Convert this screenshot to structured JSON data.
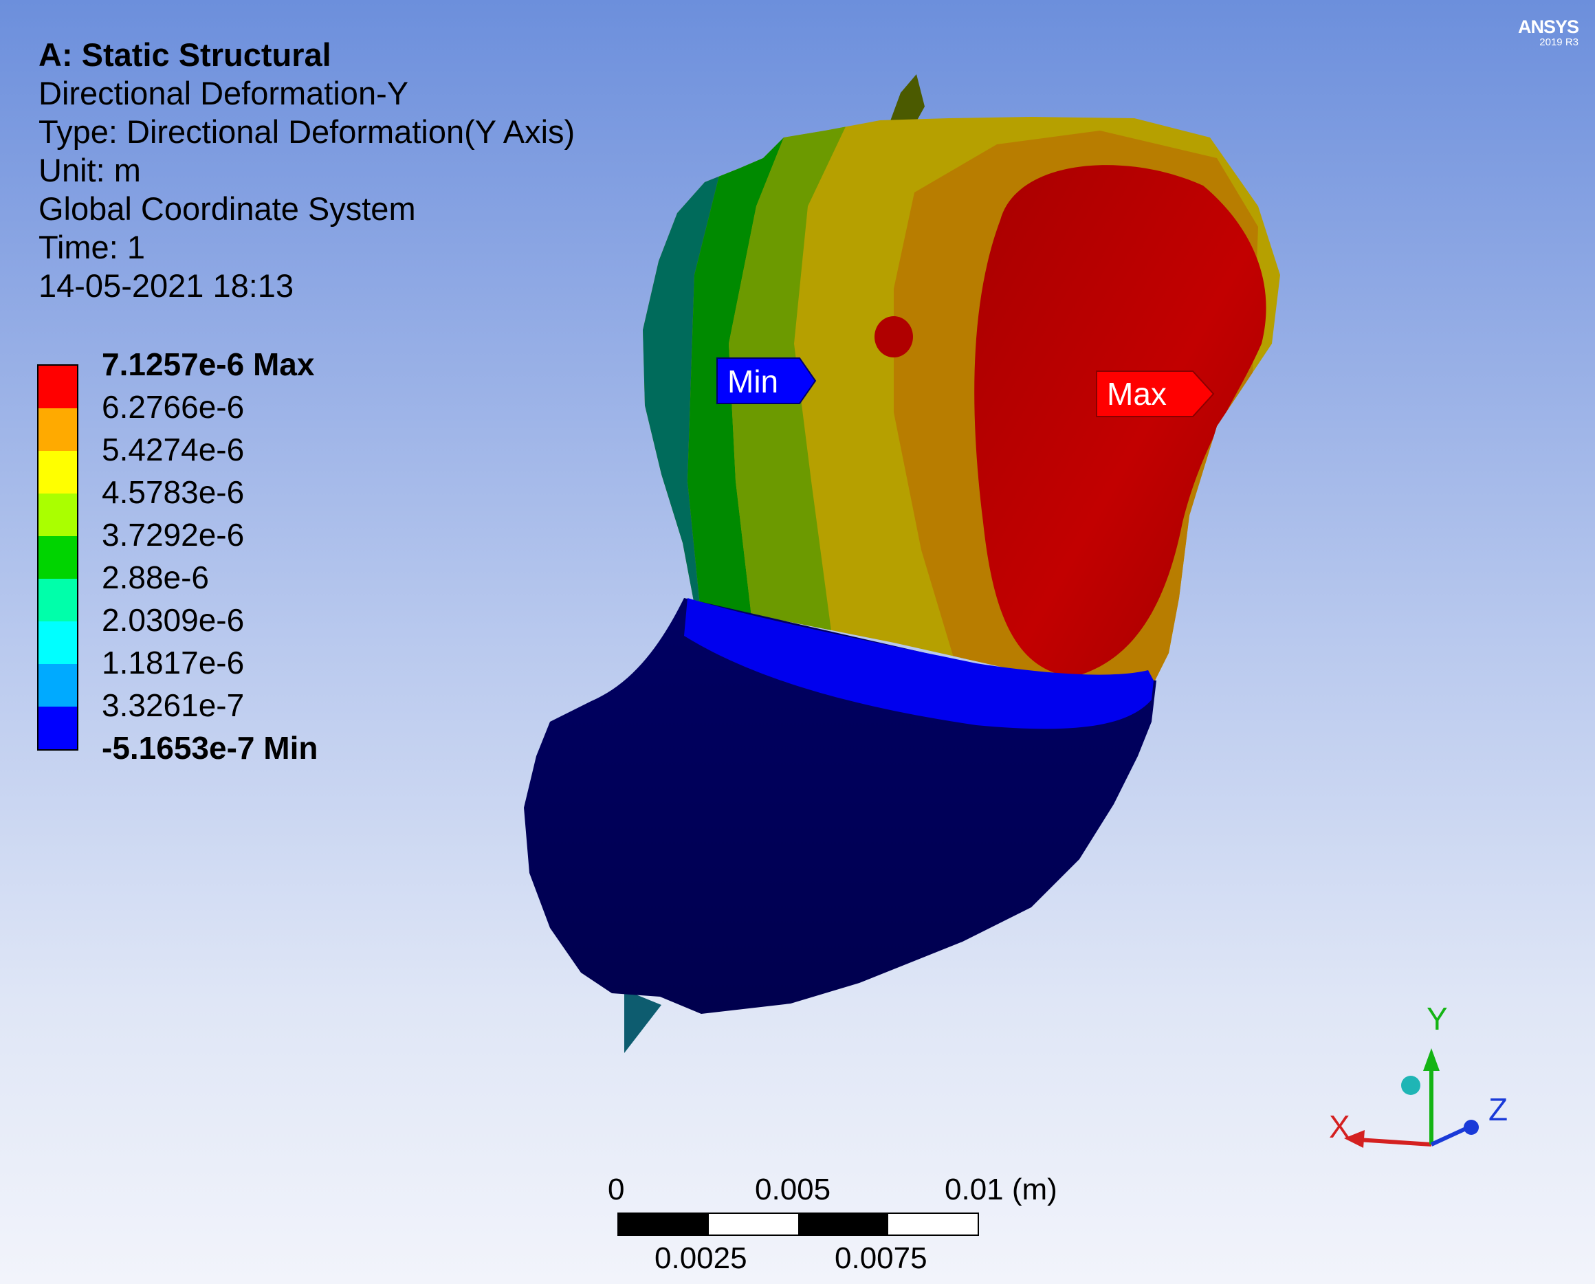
{
  "header": {
    "title": "A: Static Structural",
    "result_name": "Directional Deformation-Y",
    "type": "Type: Directional Deformation(Y Axis)",
    "unit": "Unit: m",
    "coordinate_system": "Global Coordinate System",
    "time": "Time: 1",
    "timestamp": "14-05-2021 18:13"
  },
  "legend": {
    "labels": [
      "7.1257e-6 Max",
      "6.2766e-6",
      "5.4274e-6",
      "4.5783e-6",
      "3.7292e-6",
      "2.88e-6",
      "2.0309e-6",
      "1.1817e-6",
      "3.3261e-7",
      "-5.1653e-7 Min"
    ],
    "colors": [
      "#ff0000",
      "#ffaa00",
      "#ffff00",
      "#aaff00",
      "#00d400",
      "#00ffaa",
      "#00ffff",
      "#00aaff",
      "#0000ff"
    ]
  },
  "probes": {
    "min_label": "Min",
    "max_label": "Max",
    "min_color": "#0000ff",
    "max_color": "#ff0000"
  },
  "logo": {
    "brand": "ANSYS",
    "version": "2019 R3"
  },
  "scale": {
    "top_labels": [
      "0",
      "0.005",
      "0.01 (m)"
    ],
    "bottom_labels": [
      "0.0025",
      "0.0075"
    ]
  },
  "triad": {
    "x_label": "X",
    "y_label": "Y",
    "z_label": "Z",
    "x_color": "#d42020",
    "y_color": "#14b414",
    "z_color": "#1a3ad8"
  }
}
